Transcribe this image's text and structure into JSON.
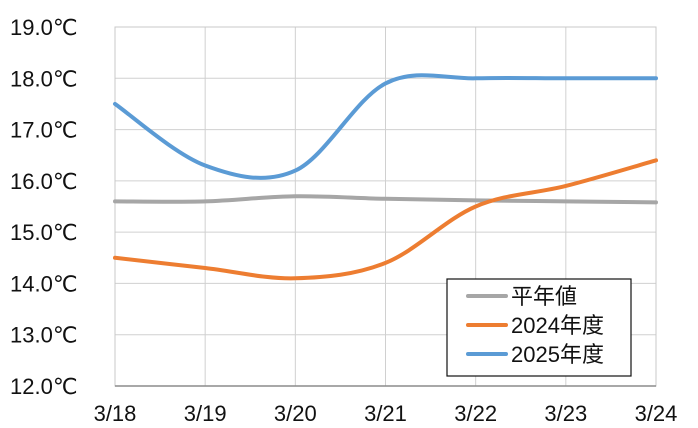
{
  "chart_data": {
    "type": "line",
    "title": "",
    "xlabel": "",
    "ylabel": "",
    "categories": [
      "3/18",
      "3/19",
      "3/20",
      "3/21",
      "3/22",
      "3/23",
      "3/24"
    ],
    "y_tick_labels": [
      "19.0℃",
      "18.0℃",
      "17.0℃",
      "16.0℃",
      "15.0℃",
      "14.0℃",
      "13.0℃",
      "12.0℃"
    ],
    "y_ticks": [
      19.0,
      18.0,
      17.0,
      16.0,
      15.0,
      14.0,
      13.0,
      12.0
    ],
    "ylim": [
      12.0,
      19.0
    ],
    "grid": true,
    "legend_position": "bottom-right",
    "series": [
      {
        "name": "平年値",
        "color": "#a6a6a6",
        "values": [
          15.6,
          15.6,
          15.7,
          15.65,
          15.62,
          15.6,
          15.58
        ]
      },
      {
        "name": "2024年度",
        "color": "#ed7d31",
        "values": [
          14.5,
          14.3,
          14.1,
          14.4,
          15.5,
          15.9,
          16.4
        ]
      },
      {
        "name": "2025年度",
        "color": "#5b9bd5",
        "values": [
          17.5,
          16.3,
          16.2,
          17.9,
          18.0,
          18.0,
          18.0
        ]
      }
    ]
  }
}
